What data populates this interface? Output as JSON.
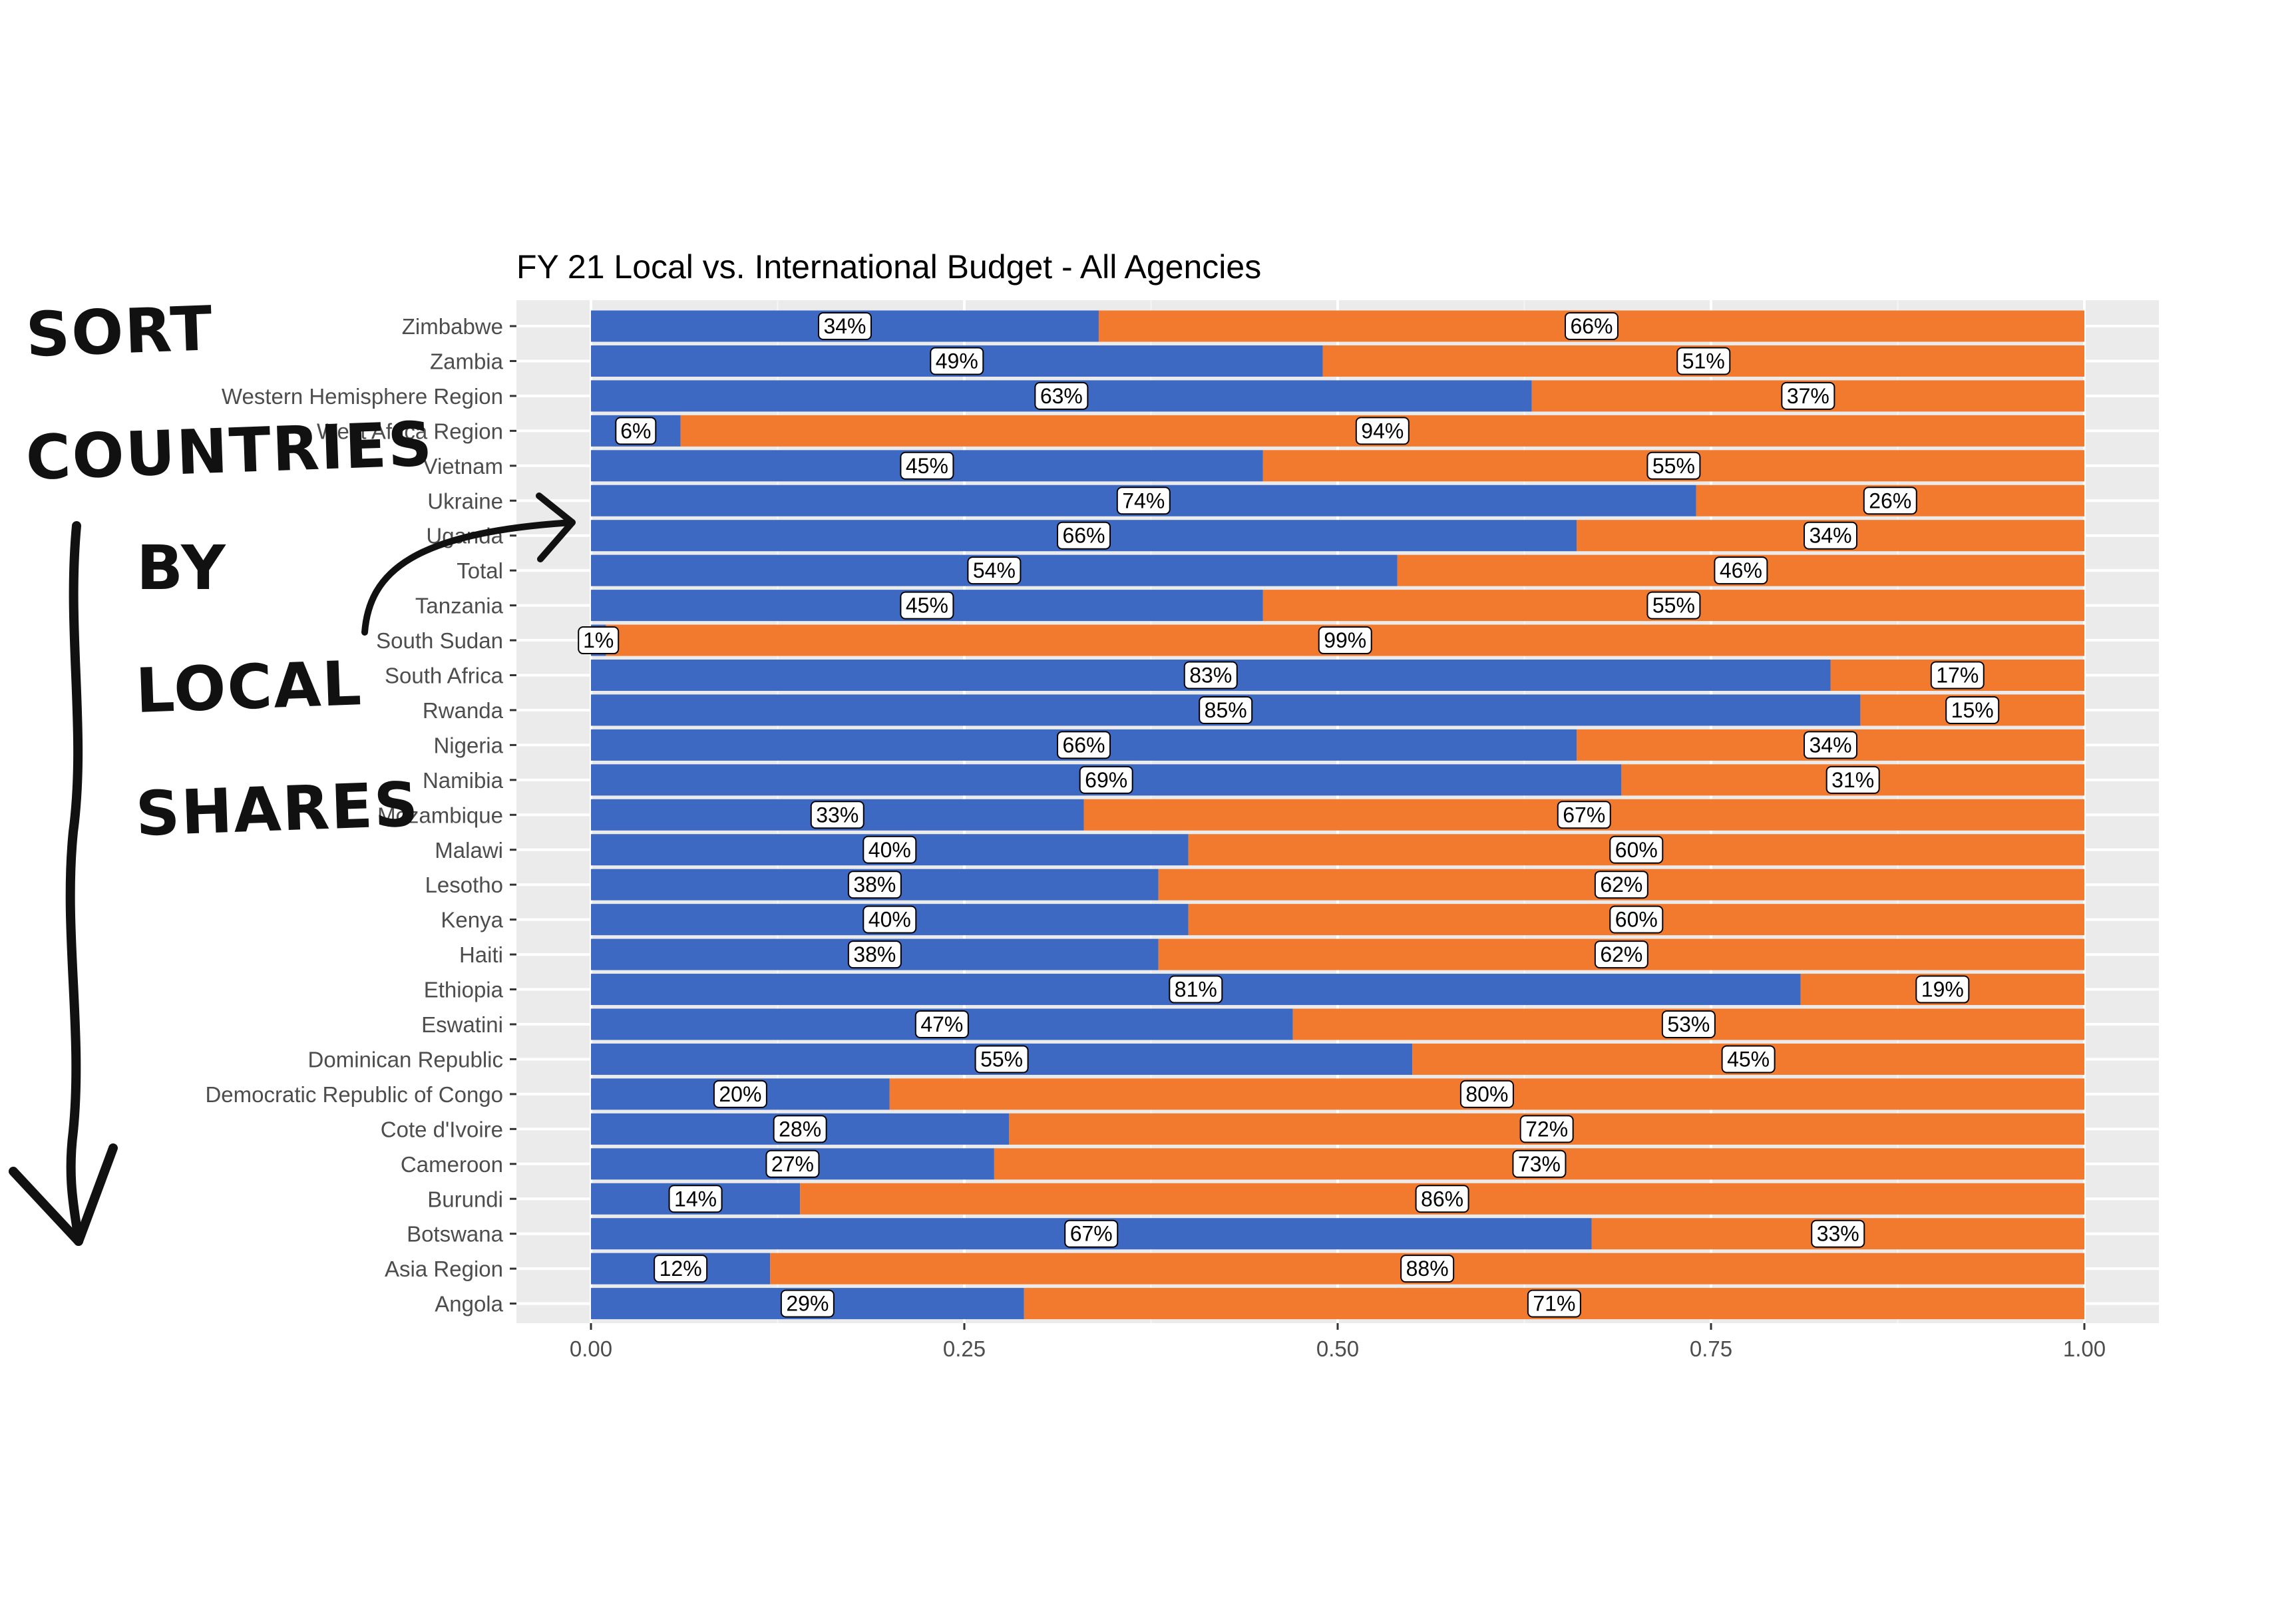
{
  "chart_data": {
    "type": "bar",
    "orientation": "horizontal",
    "stacked": true,
    "title": "FY 21 Local vs. International Budget - All Agencies",
    "xlabel": "",
    "ylabel": "",
    "xlim": [
      0,
      1
    ],
    "x_ticks": [
      "0.00",
      "0.25",
      "0.50",
      "0.75",
      "1.00"
    ],
    "x_tick_values": [
      0,
      0.25,
      0.5,
      0.75,
      1.0
    ],
    "grid": true,
    "background": "#ebebeb",
    "categories": [
      "Zimbabwe",
      "Zambia",
      "Western Hemisphere Region",
      "West Africa Region",
      "Vietnam",
      "Ukraine",
      "Uganda",
      "Total",
      "Tanzania",
      "South Sudan",
      "South Africa",
      "Rwanda",
      "Nigeria",
      "Namibia",
      "Mozambique",
      "Malawi",
      "Lesotho",
      "Kenya",
      "Haiti",
      "Ethiopia",
      "Eswatini",
      "Dominican Republic",
      "Democratic Republic of Congo",
      "Cote d'Ivoire",
      "Cameroon",
      "Burundi",
      "Botswana",
      "Asia Region",
      "Angola"
    ],
    "series": [
      {
        "color": "#3d69c2",
        "values": [
          0.34,
          0.49,
          0.63,
          0.06,
          0.45,
          0.74,
          0.66,
          0.54,
          0.45,
          0.01,
          0.83,
          0.85,
          0.66,
          0.69,
          0.33,
          0.4,
          0.38,
          0.4,
          0.38,
          0.81,
          0.47,
          0.55,
          0.2,
          0.28,
          0.27,
          0.14,
          0.67,
          0.12,
          0.29
        ],
        "labels": [
          "34%",
          "49%",
          "63%",
          "6%",
          "45%",
          "74%",
          "66%",
          "54%",
          "45%",
          "1%",
          "83%",
          "85%",
          "66%",
          "69%",
          "33%",
          "40%",
          "38%",
          "40%",
          "38%",
          "81%",
          "47%",
          "55%",
          "20%",
          "28%",
          "27%",
          "14%",
          "67%",
          "12%",
          "29%"
        ]
      },
      {
        "color": "#f27a2f",
        "values": [
          0.66,
          0.51,
          0.37,
          0.94,
          0.55,
          0.26,
          0.34,
          0.46,
          0.55,
          0.99,
          0.17,
          0.15,
          0.34,
          0.31,
          0.67,
          0.6,
          0.62,
          0.6,
          0.62,
          0.19,
          0.53,
          0.45,
          0.8,
          0.72,
          0.73,
          0.86,
          0.33,
          0.88,
          0.71
        ],
        "labels": [
          "66%",
          "51%",
          "37%",
          "94%",
          "55%",
          "26%",
          "34%",
          "46%",
          "55%",
          "99%",
          "17%",
          "15%",
          "34%",
          "31%",
          "67%",
          "60%",
          "62%",
          "60%",
          "62%",
          "19%",
          "53%",
          "45%",
          "80%",
          "72%",
          "73%",
          "86%",
          "33%",
          "88%",
          "71%"
        ]
      }
    ]
  },
  "annotation": {
    "lines": [
      "SORT",
      "COUNTRIES",
      "BY",
      "LOCAL",
      "SHARES"
    ],
    "color": "#111111"
  }
}
